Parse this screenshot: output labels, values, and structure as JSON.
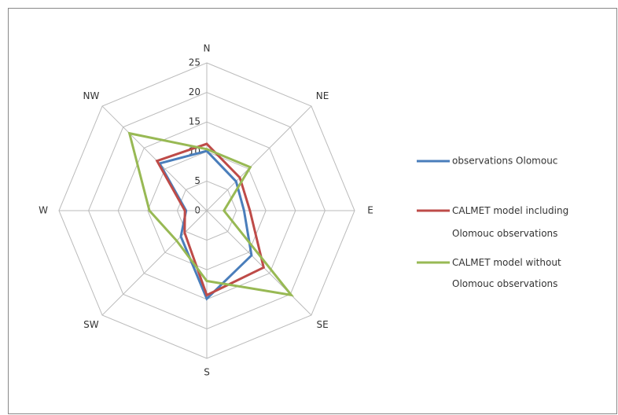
{
  "chart_data": {
    "type": "radar",
    "categories": [
      "N",
      "NE",
      "E",
      "SE",
      "S",
      "SW",
      "W",
      "NW"
    ],
    "ylim": [
      0,
      25
    ],
    "yticks": [
      0,
      5,
      10,
      15,
      20,
      25
    ],
    "grid": true,
    "legend": "right",
    "series": [
      {
        "name": "observations Olomouc",
        "color": "#4a7ebb",
        "values": [
          10.1,
          7,
          6.3,
          10.7,
          14.9,
          6.2,
          3.5,
          11.3
        ]
      },
      {
        "name": "CALMET model including Olomouc observations",
        "color": "#be4b48",
        "values": [
          11.3,
          7.9,
          7.3,
          13.6,
          14.3,
          5.3,
          3.7,
          11.9
        ]
      },
      {
        "name": "CALMET model without Olomouc observations",
        "color": "#98b954",
        "values": [
          10.4,
          10.4,
          2.9,
          20.2,
          11.9,
          7.2,
          9.7,
          18.5
        ]
      }
    ]
  }
}
